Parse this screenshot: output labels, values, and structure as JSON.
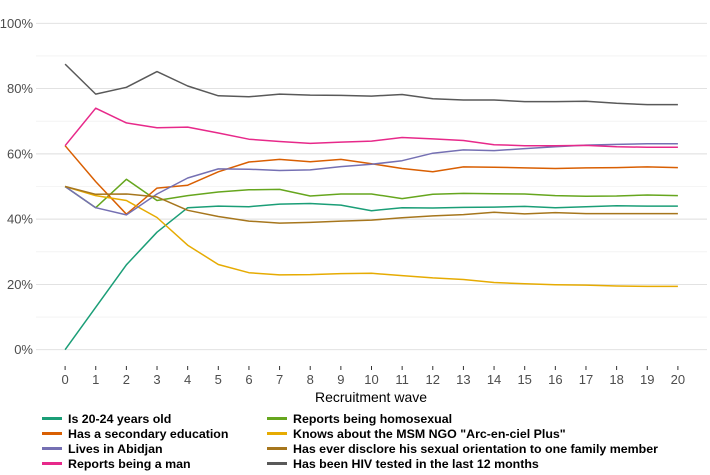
{
  "chart_data": {
    "type": "line",
    "xlabel": "Recruitment wave",
    "ylabel": "",
    "x": [
      0,
      1,
      2,
      3,
      4,
      5,
      6,
      7,
      8,
      9,
      10,
      11,
      12,
      13,
      14,
      15,
      16,
      17,
      18,
      19,
      20
    ],
    "ylim": [
      0,
      100
    ],
    "yticks": [
      0,
      20,
      40,
      60,
      80,
      100
    ],
    "ytick_labels": [
      "0%",
      "20%",
      "40%",
      "60%",
      "80%",
      "100%"
    ],
    "grid": true,
    "legend_position": "bottom",
    "series": [
      {
        "name": "Is 20-24 years old",
        "color": "#1b9e77",
        "values": [
          0,
          13,
          26,
          36,
          43.5,
          44,
          43.8,
          44.6,
          44.8,
          44.3,
          42.6,
          43.5,
          43.4,
          43.6,
          43.7,
          43.9,
          43.5,
          43.8,
          44.1,
          44.0,
          44.0
        ]
      },
      {
        "name": "Reports being homosexual",
        "color": "#66a61e",
        "values": [
          50,
          43.5,
          52.2,
          45.7,
          47.2,
          48.3,
          49.0,
          49.1,
          47.1,
          47.7,
          47.7,
          46.3,
          47.6,
          47.9,
          47.8,
          47.7,
          47.2,
          47.0,
          47.1,
          47.4,
          47.2
        ]
      },
      {
        "name": "Has a secondary education",
        "color": "#d95f02",
        "values": [
          62.5,
          51.5,
          41.5,
          49.5,
          50.4,
          54.5,
          57.5,
          58.3,
          57.6,
          58.3,
          57.0,
          55.5,
          54.5,
          56.0,
          55.9,
          55.7,
          55.5,
          55.7,
          55.8,
          56.0,
          55.8
        ]
      },
      {
        "name": "Knows about the MSM NGO \"Arc-en-ciel Plus\"",
        "color": "#e6ab02",
        "values": [
          50,
          47.2,
          45.7,
          40.5,
          32.0,
          26.1,
          23.6,
          22.9,
          23.0,
          23.3,
          23.4,
          22.7,
          22.0,
          21.5,
          20.6,
          20.2,
          19.9,
          19.8,
          19.5,
          19.4,
          19.4
        ]
      },
      {
        "name": "Lives in Abidjan",
        "color": "#7570b3",
        "values": [
          50,
          43.5,
          41.3,
          47.7,
          52.6,
          55.4,
          55.3,
          54.9,
          55.1,
          56.1,
          56.8,
          57.9,
          60.2,
          61.2,
          61.0,
          61.6,
          62.2,
          62.7,
          62.9,
          63.1,
          63.1
        ]
      },
      {
        "name": "Has ever disclore his sexual orientation to one family member",
        "color": "#a6761d",
        "values": [
          50,
          47.6,
          47.7,
          46.8,
          42.7,
          40.8,
          39.4,
          38.8,
          39.0,
          39.4,
          39.7,
          40.4,
          41.0,
          41.4,
          42.1,
          41.6,
          42.0,
          41.7,
          41.7,
          41.7,
          41.7
        ]
      },
      {
        "name": "Reports being a man",
        "color": "#e7298a",
        "values": [
          62.5,
          74.0,
          69.5,
          68.0,
          68.2,
          66.4,
          64.5,
          63.8,
          63.2,
          63.6,
          63.9,
          65.0,
          64.6,
          64.1,
          62.8,
          62.5,
          62.5,
          62.6,
          62.2,
          62.0,
          62.0
        ]
      },
      {
        "name": "Has been HIV tested in the last 12 months",
        "color": "#595959",
        "values": [
          87.5,
          78.3,
          80.4,
          85.2,
          80.8,
          77.8,
          77.5,
          78.3,
          78.0,
          77.9,
          77.7,
          78.2,
          76.9,
          76.5,
          76.5,
          76.0,
          76.0,
          76.1,
          75.5,
          75.1,
          75.1
        ]
      }
    ]
  }
}
